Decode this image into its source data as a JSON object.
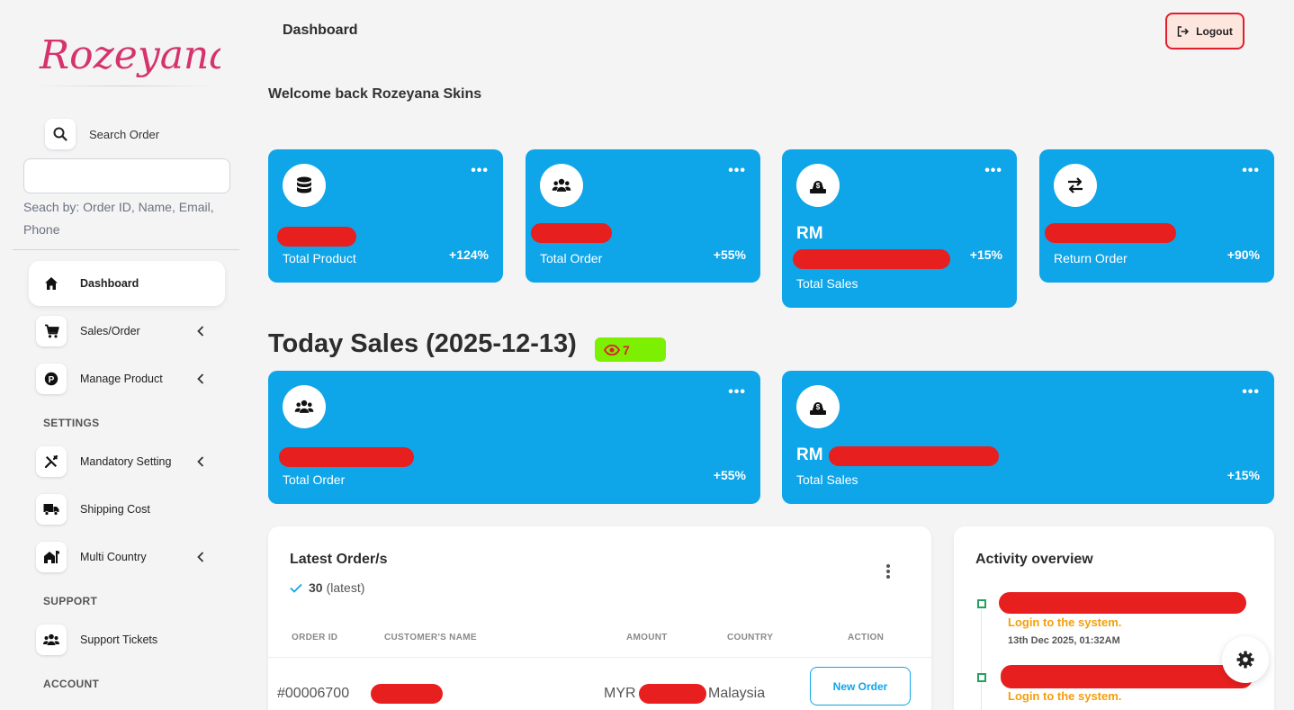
{
  "sidebar": {
    "logo_text": "Rozeyana",
    "search": {
      "label": "Search Order",
      "placeholder": "",
      "hint": "Seach by: Order ID, Name, Email, Phone"
    },
    "items": [
      {
        "label": "Dashboard",
        "icon": "home-icon",
        "active": true
      },
      {
        "label": "Sales/Order",
        "icon": "cart-icon",
        "has_submenu": true
      },
      {
        "label": "Manage Product",
        "icon": "product-p-icon",
        "has_submenu": true
      },
      {
        "label": "Mandatory Setting",
        "icon": "tools-icon",
        "has_submenu": true
      },
      {
        "label": "Shipping Cost",
        "icon": "truck-icon"
      },
      {
        "label": "Multi Country",
        "icon": "country-house-icon",
        "has_submenu": true
      },
      {
        "label": "Support Tickets",
        "icon": "users-icon"
      }
    ],
    "sections": {
      "settings": "SETTINGS",
      "support": "SUPPORT",
      "account": "ACCOUNT"
    }
  },
  "header": {
    "title": "Dashboard",
    "logout_label": "Logout"
  },
  "welcome": "Welcome back Rozeyana Skins",
  "stats": [
    {
      "label": "Total Product",
      "change": "+124%",
      "icon": "database-icon"
    },
    {
      "label": "Total Order",
      "change": "+55%",
      "icon": "users-icon"
    },
    {
      "label": "Total Sales",
      "prefix": "RM",
      "change": "+15%",
      "icon": "money-bag-icon"
    },
    {
      "label": "Return Order",
      "change": "+90%",
      "icon": "exchange-icon"
    }
  ],
  "today": {
    "title": "Today Sales (2025-12-13)",
    "views": "7",
    "cards": [
      {
        "label": "Total Order",
        "change": "+55%",
        "icon": "users-icon"
      },
      {
        "label": "Total Sales",
        "prefix": "RM",
        "change": "+15%",
        "icon": "money-bag-icon"
      }
    ]
  },
  "latest_orders": {
    "title": "Latest Order/s",
    "count": "30",
    "count_note": "(latest)",
    "columns": [
      "ORDER ID",
      "CUSTOMER'S NAME",
      "AMOUNT",
      "COUNTRY",
      "ACTION"
    ],
    "rows": [
      {
        "order_id": "#00006700",
        "currency": "MYR",
        "country": "Malaysia",
        "action": "New Order"
      }
    ]
  },
  "activity": {
    "title": "Activity overview",
    "items": [
      {
        "text": "Login to the system.",
        "time": "13th Dec 2025, 01:32AM"
      },
      {
        "text": "Login to the system."
      }
    ]
  },
  "colors": {
    "card": "#0ea5e9",
    "redaction": "#e81f1f",
    "badge": "#7cf000",
    "logout_border": "#e11d2e",
    "activity_text": "#f59e0b"
  }
}
